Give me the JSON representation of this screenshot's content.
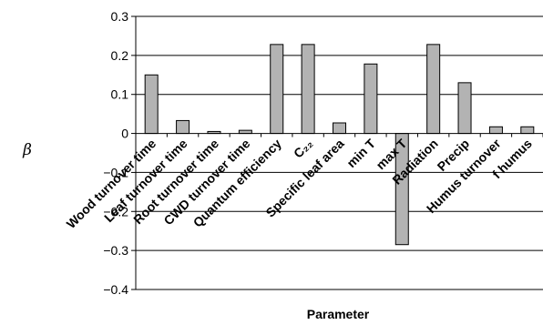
{
  "chart_data": {
    "type": "bar",
    "title": "",
    "xlabel": "Parameter",
    "ylabel": "β",
    "ylim": [
      -0.4,
      0.3
    ],
    "yticks": [
      0.3,
      0.2,
      0.1,
      0,
      -0.1,
      -0.2,
      -0.3,
      -0.4
    ],
    "ytick_labels": [
      "0.3",
      "0.2",
      "0.1",
      "0",
      "−0.1",
      "−0.2",
      "−0.3",
      "−0.4"
    ],
    "grid": true,
    "bar_color": "#b3b3b3",
    "categories": [
      "Wood turnover time",
      "Leaf turnover time",
      "Root turnover time",
      "CWD turnover time",
      "Quantum efficiency",
      "C₂₂",
      "Specific leaf area",
      "min T",
      "max T",
      "Radiation",
      "Precip",
      "Humus turnover",
      "f humus"
    ],
    "values": [
      0.15,
      0.033,
      0.005,
      0.008,
      0.228,
      0.228,
      0.027,
      0.178,
      -0.285,
      0.228,
      0.13,
      0.017,
      0.017
    ]
  }
}
